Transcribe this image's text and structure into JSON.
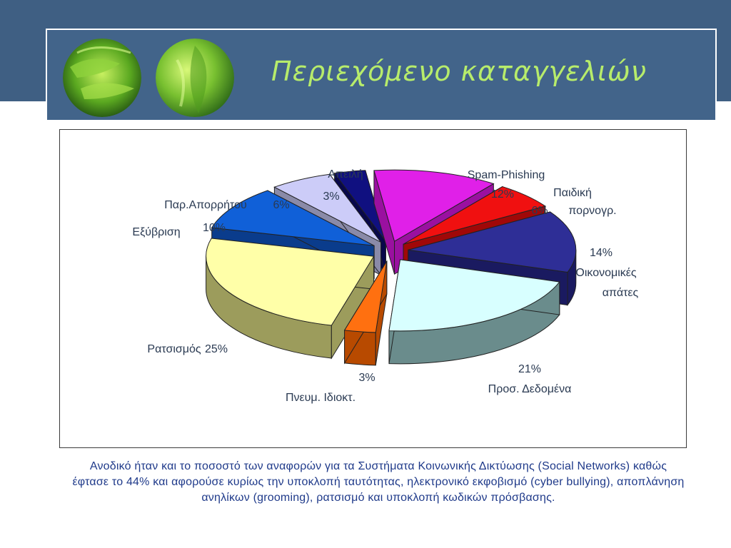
{
  "slide": {
    "title": "Περιεχόμενο καταγγελιών",
    "caption": "Ανοδικό ήταν και το ποσοστό των αναφορών για τα Συστήματα Κοινωνικής Δικτύωσης (Social Networks) καθώς έφτασε το 44% και αφορούσε κυρίως την υποκλοπή ταυτότητας, ηλεκτρονικό εκφοβισμό (cyber bullying), αποπλάνηση ανηλίκων (grooming), ρατσισμό και υποκλοπή κωδικών πρόσβασης.",
    "colors": {
      "header": "#3f5f83",
      "title_text": "#b7ec6b",
      "caption_text": "#1f3a8a"
    },
    "icons": [
      "green-leaf-image",
      "green-leaf-image"
    ]
  },
  "chart_data": {
    "type": "pie",
    "style": "3d-exploded",
    "slices": [
      {
        "label": "Spam-Phishing",
        "value": 12,
        "pct_label": "12%",
        "color": "#e020e8",
        "side": "#9a10a0"
      },
      {
        "label": "Παιδική πορνογρ.",
        "value": 6,
        "pct_label": "6%",
        "color": "#f01010",
        "side": "#a00808"
      },
      {
        "label": "Οικονομικές απάτες",
        "value": 14,
        "pct_label": "14%",
        "color": "#2e2e96",
        "side": "#1a1a60"
      },
      {
        "label": "Προσ. Δεδομένα",
        "value": 21,
        "pct_label": "21%",
        "color": "#d8ffff",
        "side": "#6a8c8c"
      },
      {
        "label": "Πνευμ. Ιδιοκτ.",
        "value": 3,
        "pct_label": "3%",
        "color": "#ff7010",
        "side": "#b84a00"
      },
      {
        "label": "Ρατσισμός",
        "value": 25,
        "pct_label": "25%",
        "color": "#ffffa8",
        "side": "#9c9c5c"
      },
      {
        "label": "Εξύβριση",
        "value": 10,
        "pct_label": "10%",
        "color": "#1060d8",
        "side": "#0a3c8c"
      },
      {
        "label": "Παρ.Απορρήτου",
        "value": 6,
        "pct_label": "6%",
        "color": "#ccccf8",
        "side": "#8a8aa8"
      },
      {
        "label": "Απειλή",
        "value": 3,
        "pct_label": "3%",
        "color": "#101080",
        "side": "#08084a"
      }
    ]
  }
}
